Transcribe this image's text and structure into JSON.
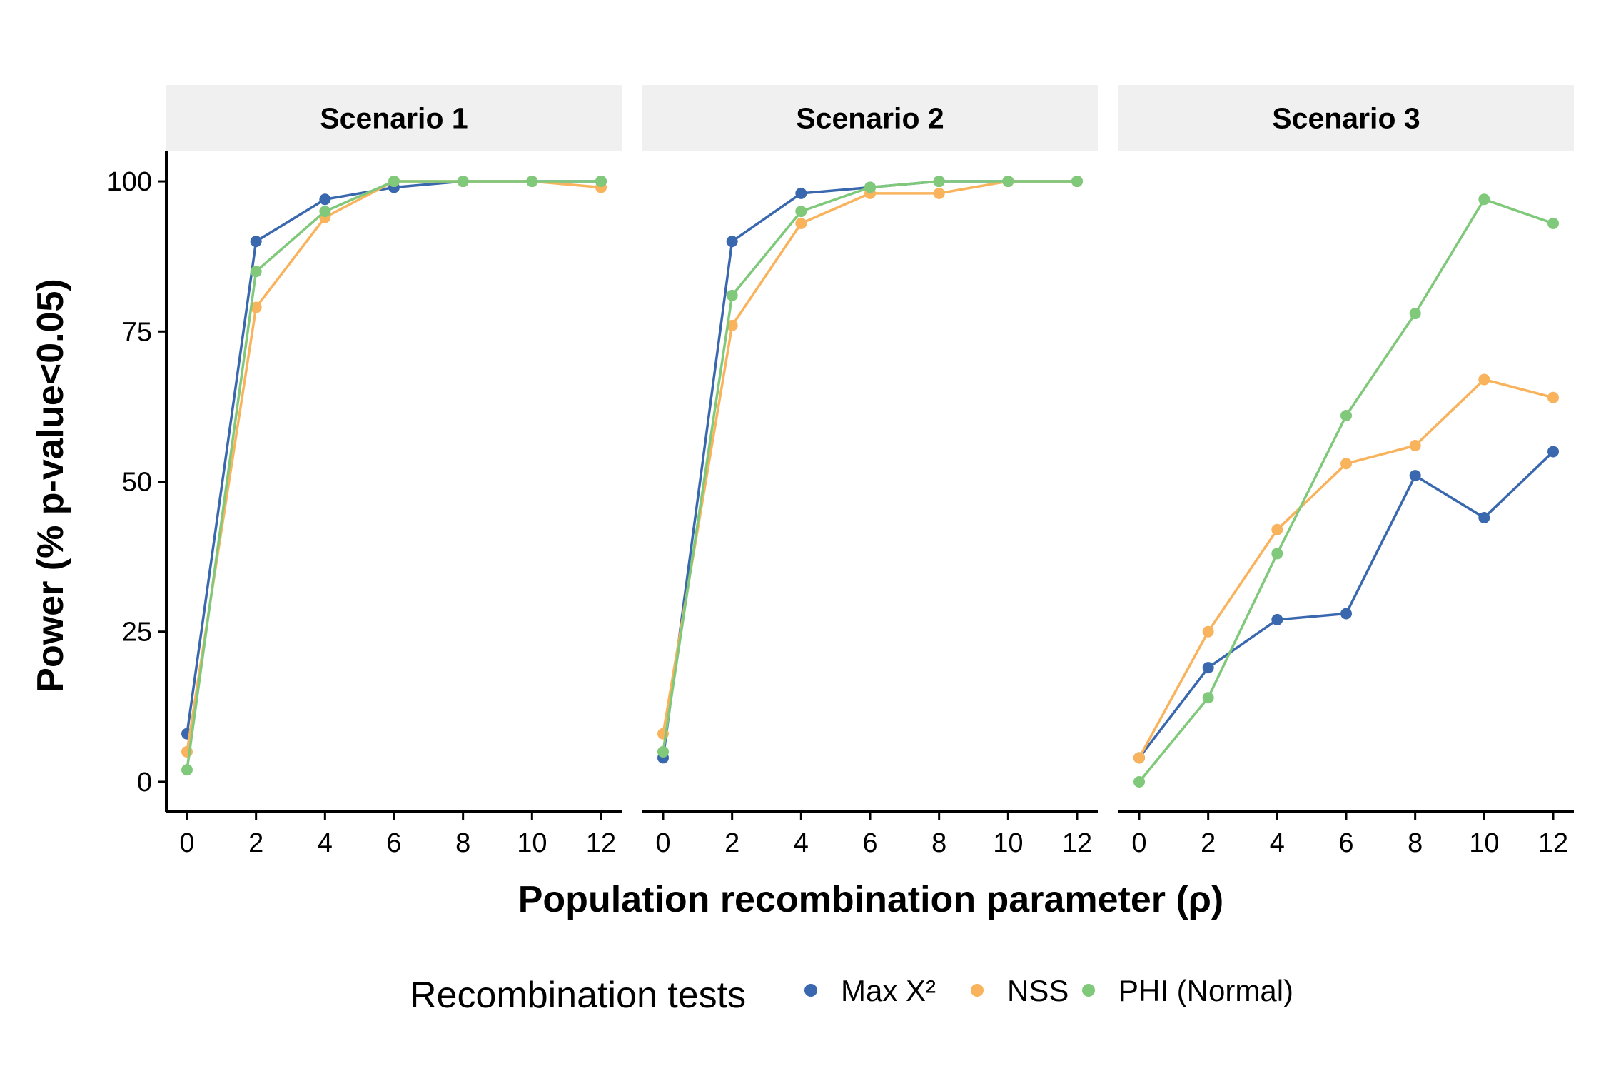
{
  "chart_data": {
    "type": "line",
    "xlabel": "Population recombination parameter (ρ)",
    "ylabel": "Power (% p-value<0.05)",
    "x": [
      0,
      2,
      4,
      6,
      8,
      10,
      12
    ],
    "xticks": [
      "0",
      "2",
      "4",
      "6",
      "8",
      "10",
      "12"
    ],
    "yticks": [
      "0",
      "25",
      "50",
      "75",
      "100"
    ],
    "xlim": [
      -0.6,
      12.6
    ],
    "ylim": [
      -5,
      105
    ],
    "grid": false,
    "legend": {
      "title": "Recombination tests",
      "position": "bottom",
      "entries": [
        {
          "label": "Max X²",
          "color": "#3a68ae"
        },
        {
          "label": "NSS",
          "color": "#f9b35c"
        },
        {
          "label": "PHI (Normal)",
          "color": "#80c97b"
        }
      ]
    },
    "panels": [
      {
        "title": "Scenario 1",
        "series": [
          {
            "name": "Max X²",
            "color": "#3a68ae",
            "values": [
              8,
              90,
              97,
              99,
              100,
              100,
              100
            ]
          },
          {
            "name": "NSS",
            "color": "#f9b35c",
            "values": [
              5,
              79,
              94,
              100,
              100,
              100,
              99
            ]
          },
          {
            "name": "PHI (Normal)",
            "color": "#80c97b",
            "values": [
              2,
              85,
              95,
              100,
              100,
              100,
              100
            ]
          }
        ]
      },
      {
        "title": "Scenario 2",
        "series": [
          {
            "name": "Max X²",
            "color": "#3a68ae",
            "values": [
              4,
              90,
              98,
              99,
              100,
              100,
              100
            ]
          },
          {
            "name": "NSS",
            "color": "#f9b35c",
            "values": [
              8,
              76,
              93,
              98,
              98,
              100,
              100
            ]
          },
          {
            "name": "PHI (Normal)",
            "color": "#80c97b",
            "values": [
              5,
              81,
              95,
              99,
              100,
              100,
              100
            ]
          }
        ]
      },
      {
        "title": "Scenario 3",
        "series": [
          {
            "name": "Max X²",
            "color": "#3a68ae",
            "values": [
              4,
              19,
              27,
              28,
              51,
              44,
              55
            ]
          },
          {
            "name": "NSS",
            "color": "#f9b35c",
            "values": [
              4,
              25,
              42,
              53,
              56,
              67,
              64
            ]
          },
          {
            "name": "PHI (Normal)",
            "color": "#80c97b",
            "values": [
              0,
              14,
              38,
              61,
              78,
              97,
              93
            ]
          }
        ]
      }
    ]
  }
}
